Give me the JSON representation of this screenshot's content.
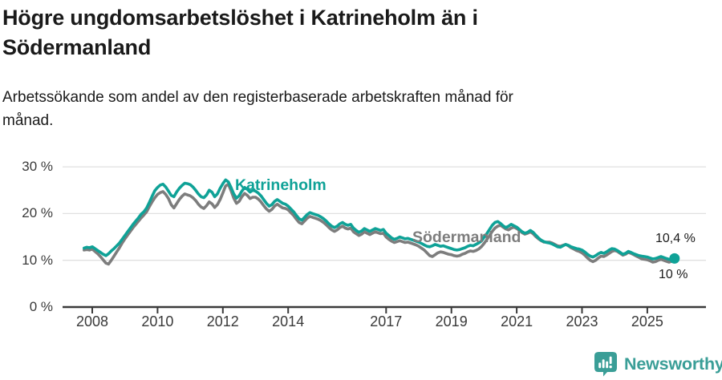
{
  "header": {
    "title": "Högre ungdomsarbetslöshet i Katrineholm än i\nSödermanland",
    "subtitle": "Arbetssökande som andel av den registerbaserade arbetskraften månad för\nmånad."
  },
  "chart_data": {
    "type": "line",
    "unit": "%",
    "grid": "horizontal-only",
    "x_axis": {
      "frequency": "monthly",
      "start_year": 2007,
      "start_month": 10,
      "ticks": [
        2008,
        2010,
        2012,
        2014,
        2017,
        2019,
        2021,
        2023,
        2025
      ]
    },
    "y_axis": {
      "min": 0,
      "max": 30,
      "ticks": [
        {
          "value": 0,
          "label": "0 %"
        },
        {
          "value": 10,
          "label": "10 %"
        },
        {
          "value": 20,
          "label": "20 %"
        },
        {
          "value": 30,
          "label": "30 %"
        }
      ]
    },
    "style": {
      "grid_color": "#e0e0e0",
      "axis_color": "#3a3a3a"
    },
    "series": [
      {
        "name": "Katrineholm",
        "color": "#0fa297",
        "end_dot": true,
        "end_label": "10,4 %",
        "values": [
          12.6,
          12.8,
          12.7,
          12.9,
          12.5,
          12.1,
          11.7,
          11.3,
          11.0,
          11.4,
          12.0,
          12.5,
          13.1,
          13.7,
          14.5,
          15.3,
          16.1,
          16.9,
          17.7,
          18.4,
          19.1,
          19.9,
          20.4,
          21.2,
          22.4,
          23.7,
          24.9,
          25.6,
          26.1,
          26.3,
          25.7,
          24.8,
          23.9,
          23.6,
          24.6,
          25.4,
          26.0,
          26.5,
          26.4,
          26.2,
          25.7,
          25.0,
          24.2,
          23.6,
          23.4,
          24.0,
          25.0,
          24.6,
          23.6,
          24.2,
          25.4,
          26.4,
          27.2,
          26.8,
          25.6,
          24.2,
          23.3,
          23.8,
          24.8,
          25.6,
          25.2,
          24.6,
          25.0,
          24.8,
          24.4,
          23.8,
          23.0,
          22.2,
          21.6,
          21.9,
          22.6,
          23.0,
          22.6,
          22.2,
          22.0,
          21.6,
          21.0,
          20.4,
          19.6,
          18.9,
          18.6,
          19.2,
          19.8,
          20.2,
          20.0,
          19.8,
          19.6,
          19.3,
          18.9,
          18.4,
          17.8,
          17.3,
          17.0,
          17.3,
          17.8,
          18.1,
          17.7,
          17.5,
          17.7,
          16.9,
          16.4,
          16.0,
          16.3,
          16.8,
          16.5,
          16.2,
          16.5,
          16.8,
          16.6,
          16.4,
          16.6,
          15.8,
          15.3,
          14.8,
          14.5,
          14.7,
          15.0,
          14.8,
          14.6,
          14.7,
          14.5,
          14.3,
          14.1,
          13.9,
          13.6,
          13.3,
          13.0,
          12.9,
          13.1,
          13.4,
          13.2,
          13.0,
          13.1,
          12.9,
          12.7,
          12.5,
          12.3,
          12.2,
          12.3,
          12.5,
          12.7,
          13.0,
          13.2,
          13.1,
          13.4,
          13.7,
          14.1,
          14.9,
          15.7,
          16.6,
          17.5,
          18.1,
          18.3,
          17.9,
          17.4,
          17.0,
          17.3,
          17.7,
          17.4,
          17.1,
          16.6,
          16.1,
          15.8,
          16.0,
          16.4,
          16.0,
          15.4,
          14.8,
          14.3,
          14.0,
          13.8,
          13.7,
          13.5,
          13.2,
          12.9,
          12.8,
          13.1,
          13.4,
          13.2,
          12.9,
          12.7,
          12.5,
          12.4,
          12.2,
          11.8,
          11.3,
          10.9,
          10.7,
          11.0,
          11.4,
          11.7,
          11.5,
          11.8,
          12.2,
          12.5,
          12.4,
          12.1,
          11.7,
          11.3,
          11.5,
          11.9,
          11.7,
          11.4,
          11.2,
          11.0,
          10.9,
          10.8,
          10.7,
          10.5,
          10.3,
          10.4,
          10.6,
          10.8,
          10.6,
          10.4,
          10.2,
          10.3,
          10.4
        ]
      },
      {
        "name": "Södermanland",
        "color": "#7d7d7d",
        "end_dot": false,
        "end_label": "10 %",
        "values": [
          12.2,
          12.3,
          12.2,
          12.4,
          11.9,
          11.4,
          10.8,
          10.1,
          9.4,
          9.2,
          10.0,
          10.9,
          11.8,
          12.7,
          13.7,
          14.6,
          15.4,
          16.2,
          17.0,
          17.7,
          18.4,
          19.1,
          19.7,
          20.4,
          21.5,
          22.5,
          23.4,
          24.1,
          24.5,
          24.7,
          24.1,
          23.2,
          21.9,
          21.2,
          22.1,
          23.0,
          23.7,
          24.2,
          24.0,
          23.8,
          23.4,
          22.8,
          22.0,
          21.4,
          21.1,
          21.7,
          22.5,
          22.1,
          21.3,
          21.9,
          23.0,
          24.4,
          25.9,
          26.3,
          24.9,
          23.3,
          22.2,
          22.6,
          23.6,
          24.3,
          23.9,
          23.2,
          23.5,
          23.5,
          23.1,
          22.5,
          21.7,
          21.0,
          20.5,
          20.9,
          21.6,
          22.0,
          21.6,
          21.2,
          21.1,
          20.8,
          20.2,
          19.6,
          18.8,
          18.1,
          17.8,
          18.4,
          19.0,
          19.4,
          19.2,
          19.0,
          18.8,
          18.5,
          18.1,
          17.6,
          17.0,
          16.5,
          16.2,
          16.5,
          17.0,
          17.3,
          16.9,
          16.7,
          16.9,
          16.1,
          15.7,
          15.3,
          15.6,
          16.1,
          15.8,
          15.5,
          15.8,
          16.1,
          15.9,
          15.7,
          15.8,
          15.0,
          14.5,
          14.1,
          13.8,
          14.0,
          14.2,
          14.0,
          13.8,
          13.9,
          13.7,
          13.5,
          13.3,
          13.0,
          12.6,
          12.2,
          11.6,
          11.0,
          10.8,
          11.2,
          11.6,
          11.8,
          11.7,
          11.5,
          11.3,
          11.2,
          11.0,
          10.9,
          11.0,
          11.3,
          11.5,
          11.8,
          12.0,
          11.9,
          12.1,
          12.4,
          12.9,
          13.6,
          14.4,
          15.3,
          16.2,
          16.9,
          17.3,
          17.5,
          17.1,
          16.7,
          16.5,
          16.9,
          17.1,
          16.8,
          16.4,
          15.9,
          15.6,
          15.8,
          16.1,
          15.7,
          15.1,
          14.6,
          14.2,
          13.9,
          13.9,
          13.9,
          13.7,
          13.4,
          13.1,
          13.0,
          13.2,
          13.4,
          13.1,
          12.7,
          12.4,
          12.1,
          11.9,
          11.6,
          11.1,
          10.5,
          10.0,
          9.7,
          10.0,
          10.5,
          10.9,
          10.8,
          11.1,
          11.5,
          11.9,
          12.1,
          11.9,
          11.5,
          11.1,
          11.3,
          11.7,
          11.5,
          11.2,
          10.9,
          10.6,
          10.3,
          10.2,
          10.1,
          9.9,
          9.6,
          9.7,
          10.0,
          10.2,
          10.0,
          9.8,
          9.6,
          9.8,
          10.0
        ]
      }
    ]
  },
  "footer": {
    "brand": "Newsworthy",
    "brand_color": "#3a9e97",
    "logo_icon": "bar-chart-pin-icon"
  }
}
